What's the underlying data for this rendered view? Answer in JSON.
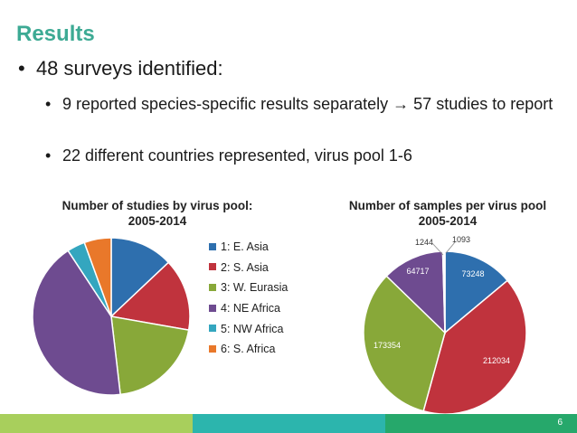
{
  "slide": {
    "title": "Results",
    "bullet1": "48 surveys identified:",
    "sub_bullets": [
      "9 reported species-specific results separately → 57 studies to report",
      "22 different countries represented, virus pool 1-6"
    ],
    "bullet_glyph": "•",
    "page_number": "6"
  },
  "colors": {
    "title": "#3daa94",
    "footer": [
      "#a8cf5c",
      "#2cb5ad",
      "#26a86b"
    ]
  },
  "chart_data": [
    {
      "type": "pie",
      "title_line1": "Number of studies by virus pool:",
      "title_line2": "2005-2014",
      "categories": [
        "1: E. Asia",
        "2: S. Asia",
        "3: W. Eurasia",
        "4: NE Africa",
        "5: NW Africa",
        "6: S. Africa"
      ],
      "values": [
        7,
        8,
        11,
        23,
        2,
        3
      ],
      "colors": [
        "#2e6fae",
        "#c0333d",
        "#88a839",
        "#6e4b90",
        "#34a6bf",
        "#e9782a"
      ],
      "legend_position": "right"
    },
    {
      "type": "pie",
      "title_line1": "Number of samples per virus pool",
      "title_line2": "2005-2014",
      "categories": [
        "1: E. Asia",
        "2: S. Asia",
        "3: W. Eurasia",
        "4: NE Africa",
        "5: NW Africa",
        "6: S. Africa"
      ],
      "values": [
        73248,
        212034,
        173354,
        64717,
        1244,
        1093
      ],
      "data_labels": [
        "73248",
        "212034",
        "173354",
        "64717",
        "1244",
        "1093"
      ],
      "colors": [
        "#2e6fae",
        "#c0333d",
        "#88a839",
        "#6e4b90",
        "#34a6bf",
        "#e9782a"
      ]
    }
  ]
}
